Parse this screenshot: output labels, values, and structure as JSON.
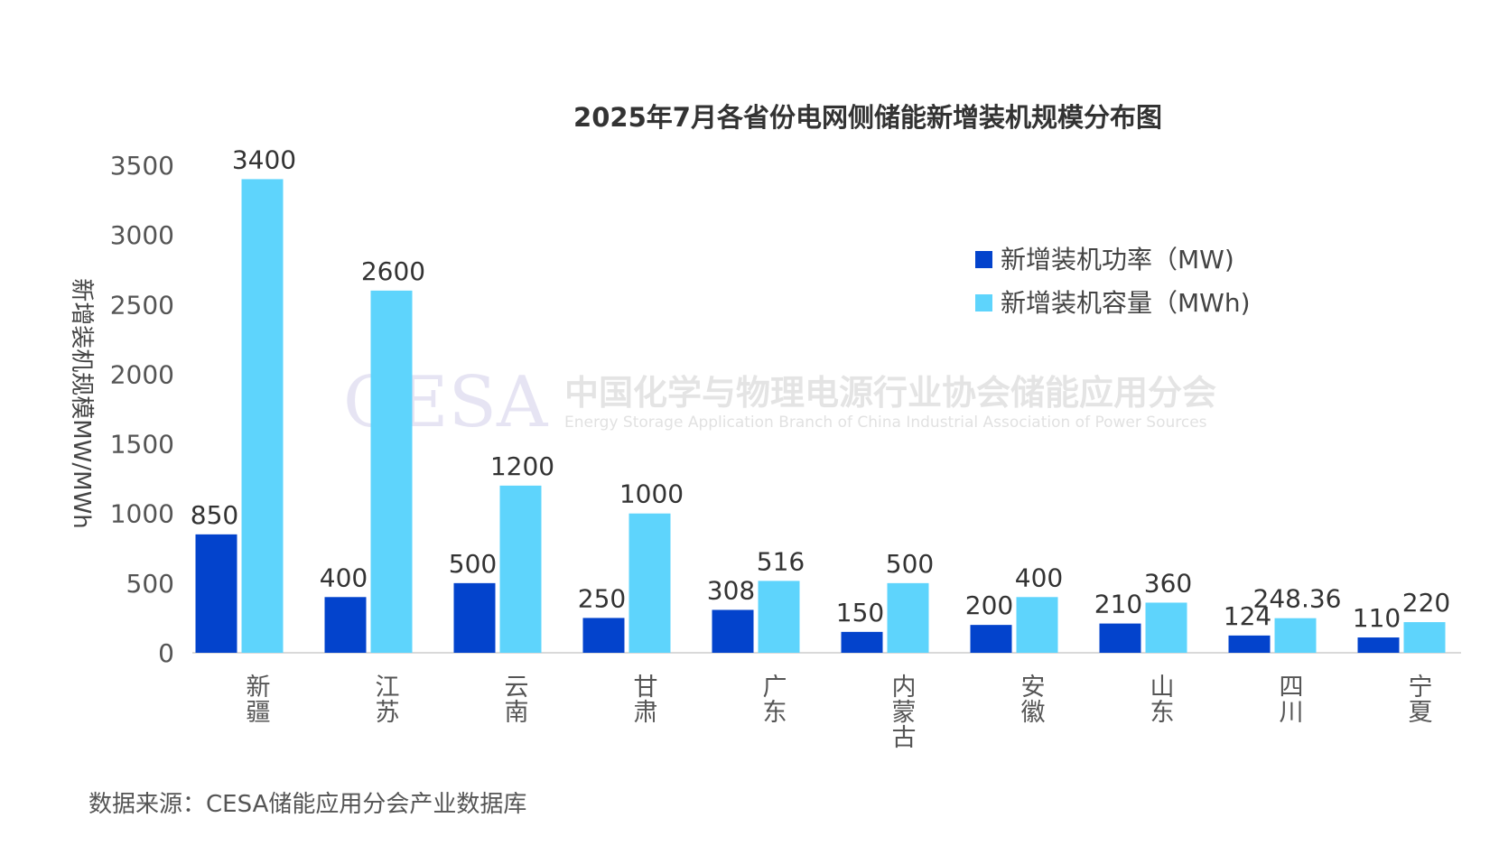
{
  "chart_data": {
    "type": "bar",
    "title": "2025年7月各省份电网侧储能新增装机规模分布图",
    "ylabel": "新增装机规模MW/MWh",
    "xlabel": "",
    "ylim": [
      0,
      3500
    ],
    "yticks": [
      "0",
      "500",
      "1000",
      "1500",
      "2000",
      "2500",
      "3000",
      "3500"
    ],
    "categories": [
      "新疆",
      "江苏",
      "云南",
      "甘肃",
      "广东",
      "内蒙古",
      "安徽",
      "山东",
      "四川",
      "宁夏"
    ],
    "series": [
      {
        "name": "新增装机功率（MW)",
        "color": "#0343cc",
        "values": [
          850,
          400,
          500,
          250,
          308,
          150,
          200,
          210,
          124,
          110
        ],
        "labels": [
          "850",
          "400",
          "500",
          "250",
          "308",
          "150",
          "200",
          "210",
          "124",
          "110"
        ]
      },
      {
        "name": "新增装机容量（MWh)",
        "color": "#5ed4fc",
        "values": [
          3400,
          2600,
          1200,
          1000,
          516,
          500,
          400,
          360,
          248.36,
          220
        ],
        "labels": [
          "3400",
          "2600",
          "1200",
          "1000",
          "516",
          "500",
          "400",
          "360",
          "248.36",
          "220"
        ]
      }
    ],
    "legend_position": "top-right",
    "grid": false
  },
  "watermark": {
    "logo": "CESA",
    "cn": "中国化学与物理电源行业协会储能应用分会",
    "en": "Energy Storage Application Branch of China Industrial Association of Power Sources"
  },
  "source_note": "数据来源：CESA储能应用分会产业数据库"
}
